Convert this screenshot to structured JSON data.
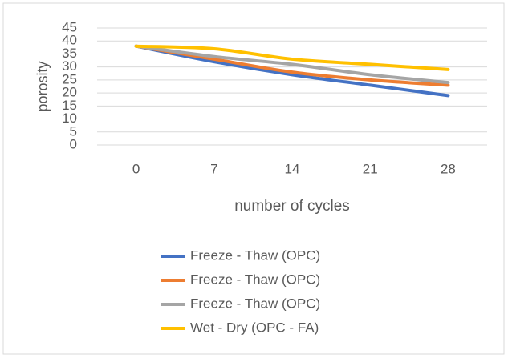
{
  "chart_data": {
    "type": "line",
    "x_label": "number of cycles",
    "y_label": "porosity",
    "categories": [
      "0",
      "7",
      "14",
      "21",
      "28"
    ],
    "series": [
      {
        "name": "Freeze - Thaw (OPC)",
        "color": "#4472c4",
        "values": [
          38,
          32,
          27,
          23,
          19
        ]
      },
      {
        "name": "Freeze - Thaw (OPC)",
        "color": "#ed7d31",
        "values": [
          38,
          33,
          28,
          25,
          23
        ]
      },
      {
        "name": "Freeze - Thaw (OPC)",
        "color": "#a5a5a5",
        "values": [
          38,
          34,
          31,
          27,
          24
        ]
      },
      {
        "name": "Wet - Dry (OPC - FA)",
        "color": "#ffc000",
        "values": [
          38,
          37,
          33,
          31,
          29
        ]
      }
    ],
    "ylim": [
      0,
      45
    ],
    "yticks": [
      0,
      5,
      10,
      15,
      20,
      25,
      30,
      35,
      40,
      45
    ],
    "grid": true,
    "legend": "bottom",
    "smooth": true
  }
}
